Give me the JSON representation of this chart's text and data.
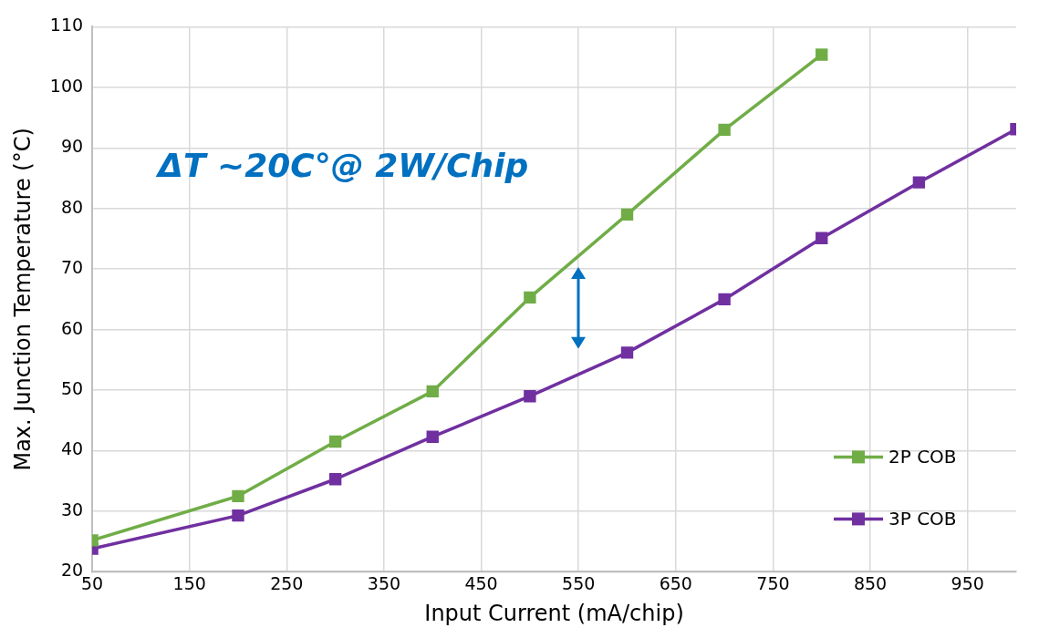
{
  "chart_data": {
    "type": "line",
    "xlabel": "Input Current (mA/chip)",
    "ylabel": "Max. Junction Temperature (°C)",
    "annotations": [
      "ΔT ~20C°@ 2W/Chip"
    ],
    "xlim": [
      50,
      1000
    ],
    "xticks": [
      50,
      150,
      250,
      350,
      450,
      550,
      650,
      750,
      850,
      950
    ],
    "ylim": [
      20,
      110
    ],
    "yticks": [
      20,
      30,
      40,
      50,
      60,
      70,
      80,
      90,
      100,
      110
    ],
    "grid": true,
    "legend": "bottom right",
    "marker": "square",
    "line_style": "solid",
    "series": [
      {
        "name": "2P COB",
        "color": "#70ad47",
        "x": [
          50,
          200,
          300,
          400,
          500,
          600,
          700,
          800
        ],
        "values": [
          25.2,
          32.5,
          41.5,
          49.8,
          65.3,
          79,
          93,
          105.4
        ]
      },
      {
        "name": "3P COB",
        "color": "#7030a0",
        "x": [
          50,
          200,
          300,
          400,
          500,
          600,
          700,
          800,
          900,
          1000
        ],
        "values": [
          23.8,
          29.3,
          35.3,
          42.3,
          49,
          56.2,
          65,
          75.1,
          84.3,
          93.1
        ]
      }
    ]
  }
}
